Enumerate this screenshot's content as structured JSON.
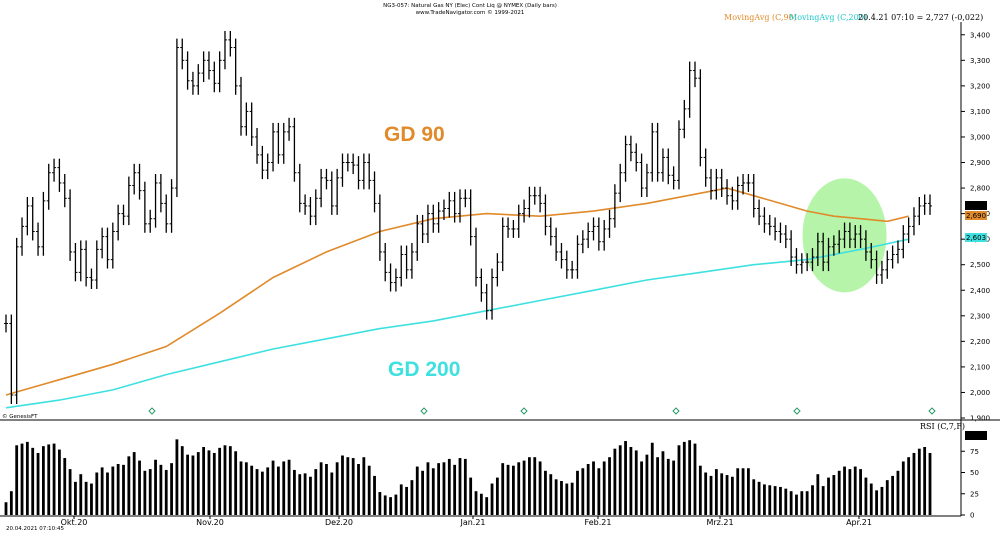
{
  "header": {
    "title_line1": "NG3-057: Natural Gas NY (Elec) Cont Liq @ NYMEX (Daily bars)",
    "title_line2": "www.TradeNavigator.com © 1999-2021"
  },
  "indicator_labels": {
    "ma90": "MovingAvg (C,90)",
    "ma200": "MovingAvg (C,200)",
    "readout": "20.4.21 07:10 = 2,727 (-0,022)",
    "rsi": "RSI (C,7,F)",
    "genesis": "© GenesisFT",
    "timestamp": "20.04.2021 07:10:45"
  },
  "annotations": {
    "gd90": "GD 90",
    "gd200": "GD 200"
  },
  "price_badges": {
    "last": "2,727",
    "ma90": "2,690",
    "ma200": "2,603",
    "rsi": "72,86"
  },
  "colors": {
    "ma90": "#e08a2a",
    "ma200": "#3ee0e0",
    "highlight": "#9cf08c",
    "bars": "#000000"
  },
  "chart_data": [
    {
      "type": "ohlc",
      "title": "",
      "x_labels": [
        "Okt.20",
        "Nov.20",
        "Dez.20",
        "Jan.21",
        "Feb.21",
        "Mrz.21",
        "Apr.21"
      ],
      "y_ticks": [
        "1,900",
        "2,000",
        "2,100",
        "2,200",
        "2,300",
        "2,400",
        "2,500",
        "2,600",
        "2,700",
        "2,800",
        "2,900",
        "3,000",
        "3,100",
        "3,200",
        "3,300",
        "3,400"
      ],
      "ylim": [
        1.9,
        3.45
      ],
      "closes": [
        2.27,
        1.99,
        2.57,
        2.65,
        2.73,
        2.63,
        2.57,
        2.75,
        2.86,
        2.88,
        2.82,
        2.76,
        2.55,
        2.47,
        2.56,
        2.45,
        2.44,
        2.56,
        2.61,
        2.52,
        2.63,
        2.7,
        2.69,
        2.81,
        2.86,
        2.79,
        2.66,
        2.68,
        2.82,
        2.74,
        2.66,
        2.8,
        3.35,
        3.3,
        3.22,
        3.2,
        3.25,
        3.3,
        3.26,
        3.21,
        3.3,
        3.38,
        3.35,
        3.2,
        3.04,
        3.1,
        3.0,
        2.93,
        2.87,
        2.9,
        3.02,
        2.93,
        3.02,
        3.04,
        2.86,
        2.74,
        2.73,
        2.69,
        2.76,
        2.84,
        2.83,
        2.73,
        2.84,
        2.9,
        2.9,
        2.89,
        2.83,
        2.9,
        2.83,
        2.74,
        2.55,
        2.47,
        2.43,
        2.45,
        2.54,
        2.48,
        2.55,
        2.66,
        2.62,
        2.7,
        2.66,
        2.71,
        2.72,
        2.75,
        2.7,
        2.76,
        2.76,
        2.61,
        2.45,
        2.39,
        2.32,
        2.45,
        2.51,
        2.65,
        2.64,
        2.64,
        2.7,
        2.72,
        2.77,
        2.77,
        2.74,
        2.65,
        2.61,
        2.55,
        2.52,
        2.48,
        2.48,
        2.58,
        2.6,
        2.63,
        2.65,
        2.59,
        2.64,
        2.68,
        2.78,
        2.86,
        2.97,
        2.94,
        2.9,
        2.8,
        2.86,
        3.02,
        2.86,
        2.92,
        2.85,
        2.83,
        3.03,
        3.11,
        3.26,
        3.23,
        2.92,
        2.84,
        2.79,
        2.84,
        2.8,
        2.77,
        2.75,
        2.81,
        2.82,
        2.82,
        2.72,
        2.69,
        2.66,
        2.65,
        2.63,
        2.62,
        2.6,
        2.53,
        2.5,
        2.51,
        2.51,
        2.53,
        2.59,
        2.51,
        2.57,
        2.58,
        2.6,
        2.63,
        2.6,
        2.62,
        2.6,
        2.55,
        2.52,
        2.46,
        2.48,
        2.52,
        2.54,
        2.56,
        2.62,
        2.65,
        2.69,
        2.73,
        2.74,
        2.73
      ],
      "series": [
        {
          "name": "MovingAvg (C,90)",
          "values": [
            [
              0,
              1.99
            ],
            [
              10,
              2.05
            ],
            [
              20,
              2.11
            ],
            [
              30,
              2.18
            ],
            [
              40,
              2.31
            ],
            [
              50,
              2.45
            ],
            [
              60,
              2.55
            ],
            [
              70,
              2.63
            ],
            [
              80,
              2.68
            ],
            [
              90,
              2.7
            ],
            [
              100,
              2.69
            ],
            [
              110,
              2.71
            ],
            [
              120,
              2.74
            ],
            [
              130,
              2.78
            ],
            [
              135,
              2.8
            ],
            [
              140,
              2.77
            ],
            [
              145,
              2.74
            ],
            [
              150,
              2.71
            ],
            [
              155,
              2.69
            ],
            [
              160,
              2.68
            ],
            [
              165,
              2.67
            ],
            [
              169,
              2.69
            ]
          ]
        },
        {
          "name": "MovingAvg (C,200)",
          "values": [
            [
              0,
              1.94
            ],
            [
              10,
              1.97
            ],
            [
              20,
              2.01
            ],
            [
              30,
              2.07
            ],
            [
              40,
              2.12
            ],
            [
              50,
              2.17
            ],
            [
              60,
              2.21
            ],
            [
              70,
              2.25
            ],
            [
              80,
              2.28
            ],
            [
              90,
              2.32
            ],
            [
              100,
              2.36
            ],
            [
              110,
              2.4
            ],
            [
              120,
              2.44
            ],
            [
              130,
              2.47
            ],
            [
              140,
              2.5
            ],
            [
              150,
              2.52
            ],
            [
              160,
              2.56
            ],
            [
              169,
              2.6
            ]
          ]
        }
      ]
    },
    {
      "type": "bar",
      "title": "RSI (C,7,F)",
      "y_ticks": [
        "0",
        "25",
        "50",
        "75"
      ],
      "ylim": [
        0,
        100
      ],
      "values": [
        15,
        28,
        82,
        84,
        86,
        79,
        73,
        81,
        83,
        84,
        77,
        67,
        54,
        39,
        48,
        39,
        37,
        50,
        56,
        50,
        57,
        60,
        59,
        69,
        74,
        64,
        52,
        54,
        65,
        59,
        53,
        61,
        89,
        81,
        71,
        70,
        74,
        80,
        76,
        73,
        79,
        82,
        81,
        75,
        63,
        62,
        58,
        54,
        51,
        56,
        64,
        57,
        63,
        65,
        53,
        48,
        49,
        45,
        54,
        62,
        60,
        50,
        62,
        70,
        68,
        67,
        60,
        68,
        58,
        46,
        27,
        23,
        21,
        24,
        36,
        33,
        41,
        57,
        52,
        62,
        55,
        61,
        62,
        66,
        59,
        67,
        66,
        44,
        28,
        25,
        21,
        37,
        44,
        61,
        59,
        58,
        62,
        64,
        68,
        68,
        63,
        52,
        48,
        42,
        40,
        37,
        38,
        52,
        55,
        60,
        63,
        55,
        63,
        68,
        78,
        82,
        87,
        80,
        76,
        63,
        71,
        85,
        68,
        75,
        66,
        64,
        82,
        86,
        88,
        84,
        58,
        50,
        46,
        54,
        49,
        47,
        45,
        55,
        55,
        55,
        42,
        39,
        36,
        35,
        34,
        33,
        31,
        28,
        24,
        28,
        28,
        35,
        48,
        34,
        44,
        47,
        52,
        57,
        54,
        57,
        54,
        44,
        37,
        29,
        33,
        41,
        46,
        52,
        63,
        68,
        73,
        78,
        80,
        73
      ]
    }
  ]
}
